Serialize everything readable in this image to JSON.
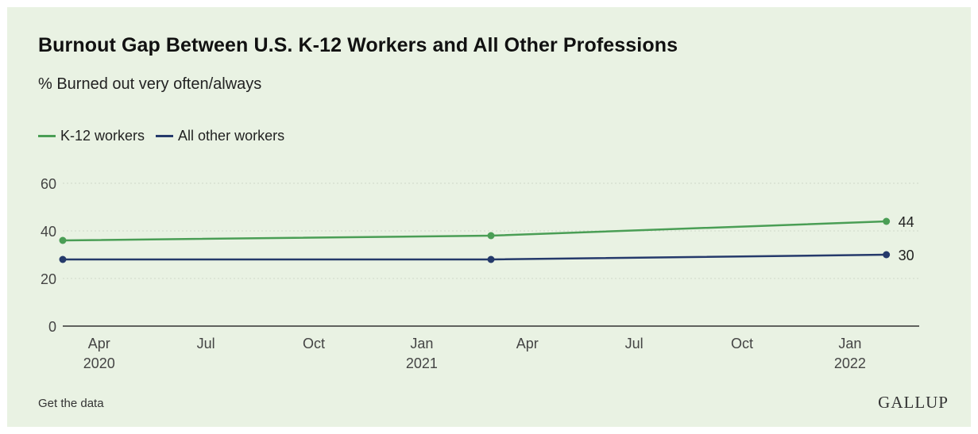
{
  "title": "Burnout Gap Between U.S. K-12 Workers and All Other Professions",
  "subtitle": "% Burned out very often/always",
  "legend": [
    {
      "label": "K-12 workers",
      "color": "#4a9e55"
    },
    {
      "label": "All other workers",
      "color": "#253a6b"
    }
  ],
  "footer": {
    "link_label": "Get the data",
    "logo_text": "GALLUP"
  },
  "chart_data": {
    "type": "line",
    "title": "Burnout Gap Between U.S. K-12 Workers and All Other Professions",
    "subtitle": "% Burned out very often/always",
    "xlabel": "",
    "ylabel": "",
    "ylim": [
      0,
      60
    ],
    "xlim": [
      "2020-03-01",
      "2022-03-01"
    ],
    "yticks": [
      0,
      20,
      40,
      60
    ],
    "xticks": [
      {
        "label": "Apr",
        "year": "2020",
        "date": "2020-04-01"
      },
      {
        "label": "Jul",
        "year": "",
        "date": "2020-07-01"
      },
      {
        "label": "Oct",
        "year": "",
        "date": "2020-10-01"
      },
      {
        "label": "Jan",
        "year": "2021",
        "date": "2021-01-01"
      },
      {
        "label": "Apr",
        "year": "",
        "date": "2021-04-01"
      },
      {
        "label": "Jul",
        "year": "",
        "date": "2021-07-01"
      },
      {
        "label": "Oct",
        "year": "",
        "date": "2021-10-01"
      },
      {
        "label": "Jan",
        "year": "2022",
        "date": "2022-01-01"
      }
    ],
    "grid": true,
    "legend_position": "top-left",
    "series": [
      {
        "name": "K-12 workers",
        "color": "#4a9e55",
        "points": [
          {
            "x": "2020-03-01",
            "y": 36
          },
          {
            "x": "2021-03-01",
            "y": 38
          },
          {
            "x": "2022-02-01",
            "y": 44
          }
        ],
        "end_label": "44"
      },
      {
        "name": "All other workers",
        "color": "#253a6b",
        "points": [
          {
            "x": "2020-03-01",
            "y": 28
          },
          {
            "x": "2021-03-01",
            "y": 28
          },
          {
            "x": "2022-02-01",
            "y": 30
          }
        ],
        "end_label": "30"
      }
    ]
  }
}
